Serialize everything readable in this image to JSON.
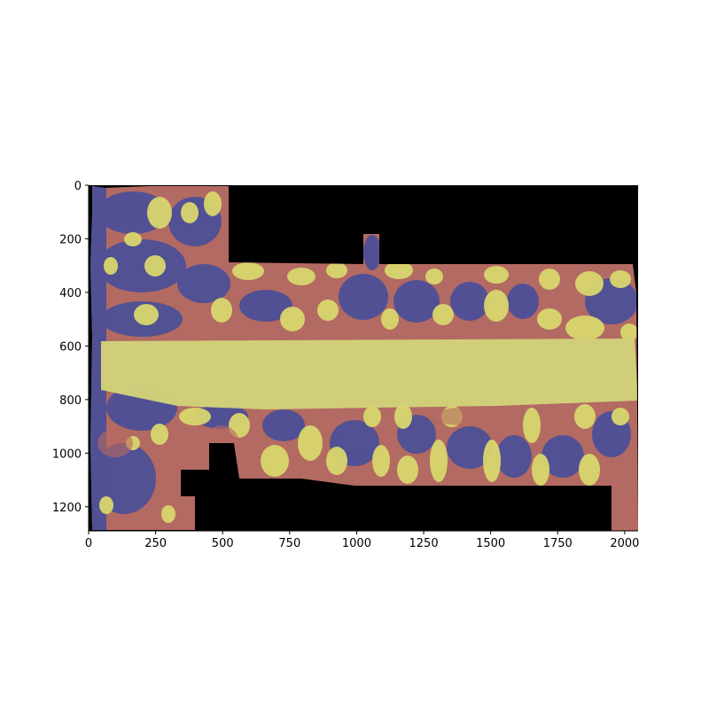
{
  "image": {
    "description_colors": {
      "background": "#000000",
      "high": "#d8d66e",
      "mid": "#b86a60",
      "low": "#4b4f9a"
    }
  },
  "axes": {
    "x_ticks": [
      "0",
      "250",
      "500",
      "750",
      "1000",
      "1250",
      "1500",
      "1750",
      "2000"
    ],
    "y_ticks": [
      "0",
      "200",
      "400",
      "600",
      "800",
      "1000",
      "1200"
    ],
    "xlim": [
      0,
      2050
    ],
    "ylim": [
      1290,
      0
    ]
  }
}
